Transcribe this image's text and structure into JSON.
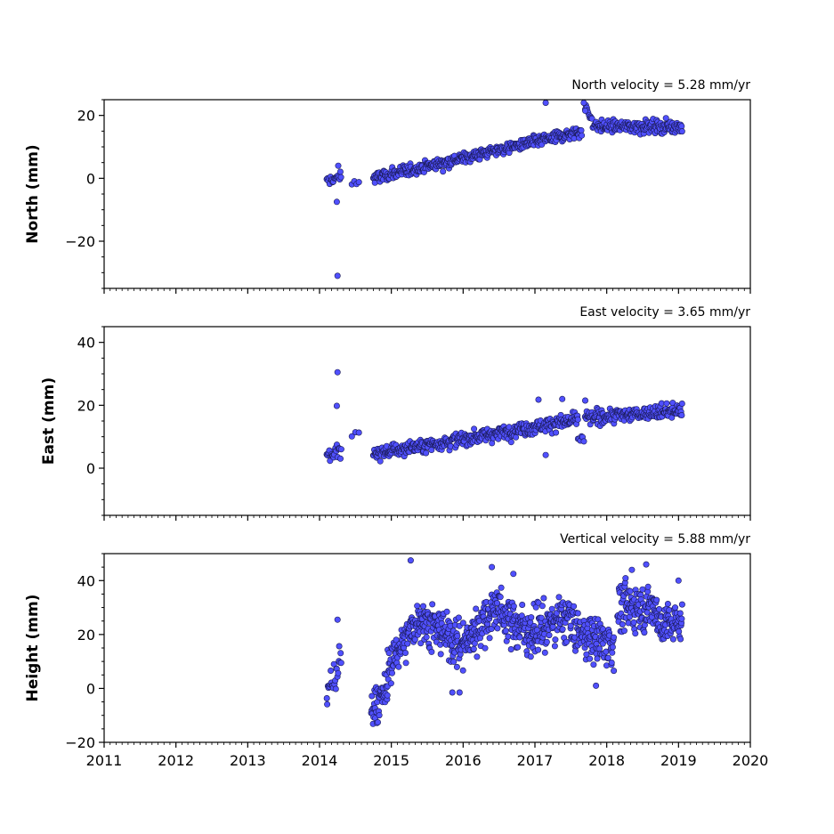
{
  "chart_data": [
    {
      "type": "scatter",
      "title": "North velocity = 5.28 mm/yr",
      "ylabel": "North (mm)",
      "xlim": [
        2011,
        2020
      ],
      "ylim": [
        -35,
        25
      ],
      "yticks": [
        -20,
        0,
        20
      ],
      "ytick_labels": [
        "−20",
        "0",
        "20"
      ],
      "color": "#5050ff",
      "velocity_mm_per_yr": 5.28,
      "segments": [
        {
          "t0": 2014.1,
          "t1": 2014.3,
          "y0": -1.0,
          "y1": 0.5,
          "noise": 1.5,
          "n": 20
        },
        {
          "t0": 2014.45,
          "t1": 2014.55,
          "y0": -1.5,
          "y1": -1.0,
          "noise": 1.0,
          "n": 4
        },
        {
          "t0": 2014.75,
          "t1": 2017.65,
          "y0": 0.0,
          "y1": 15.0,
          "noise": 1.3,
          "n": 420
        },
        {
          "t0": 2017.7,
          "t1": 2017.85,
          "y0": 22.0,
          "y1": 17.0,
          "noise": 1.5,
          "n": 15
        },
        {
          "t0": 2017.85,
          "t1": 2019.05,
          "y0": 16.5,
          "y1": 16.5,
          "noise": 1.4,
          "n": 170
        }
      ],
      "outliers": [
        {
          "x": 2014.25,
          "y": -31.0
        },
        {
          "x": 2014.24,
          "y": -7.5
        },
        {
          "x": 2014.26,
          "y": 4.0
        },
        {
          "x": 2017.15,
          "y": 24.0
        },
        {
          "x": 2017.68,
          "y": 24.0
        },
        {
          "x": 2017.7,
          "y": 21.5
        }
      ]
    },
    {
      "type": "scatter",
      "title": "East velocity = 3.65 mm/yr",
      "ylabel": "East (mm)",
      "xlim": [
        2011,
        2020
      ],
      "ylim": [
        -15,
        45
      ],
      "yticks": [
        0,
        20,
        40
      ],
      "ytick_labels": [
        "0",
        "20",
        "40"
      ],
      "color": "#5050ff",
      "velocity_mm_per_yr": 3.65,
      "segments": [
        {
          "t0": 2014.1,
          "t1": 2014.3,
          "y0": 4.0,
          "y1": 5.5,
          "noise": 1.8,
          "n": 22
        },
        {
          "t0": 2014.45,
          "t1": 2014.55,
          "y0": 9.5,
          "y1": 10.5,
          "noise": 1.0,
          "n": 3
        },
        {
          "t0": 2014.75,
          "t1": 2017.6,
          "y0": 4.5,
          "y1": 15.5,
          "noise": 1.6,
          "n": 420
        },
        {
          "t0": 2017.6,
          "t1": 2017.68,
          "y0": 10.0,
          "y1": 9.0,
          "noise": 1.0,
          "n": 6
        },
        {
          "t0": 2017.7,
          "t1": 2019.05,
          "y0": 16.0,
          "y1": 18.5,
          "noise": 1.6,
          "n": 190
        }
      ],
      "outliers": [
        {
          "x": 2014.25,
          "y": 30.5
        },
        {
          "x": 2014.24,
          "y": 19.8
        },
        {
          "x": 2017.15,
          "y": 4.2
        },
        {
          "x": 2017.05,
          "y": 21.8
        },
        {
          "x": 2017.38,
          "y": 22.0
        },
        {
          "x": 2017.7,
          "y": 21.5
        }
      ]
    },
    {
      "type": "scatter",
      "title": "Vertical velocity = 5.88 mm/yr",
      "ylabel": "Height (mm)",
      "xlim": [
        2011,
        2020
      ],
      "ylim": [
        -20,
        50
      ],
      "yticks": [
        -20,
        0,
        20,
        40
      ],
      "ytick_labels": [
        "−20",
        "0",
        "20",
        "40"
      ],
      "xticks": [
        2011,
        2012,
        2013,
        2014,
        2015,
        2016,
        2017,
        2018,
        2019,
        2020
      ],
      "xtick_labels": [
        "2011",
        "2012",
        "2013",
        "2014",
        "2015",
        "2016",
        "2017",
        "2018",
        "2019",
        "2020"
      ],
      "color": "#5050ff",
      "velocity_mm_per_yr": 5.88,
      "segments": [
        {
          "t0": 2014.1,
          "t1": 2014.3,
          "y0": -5.0,
          "y1": 12.0,
          "noise": 5.0,
          "n": 25
        },
        {
          "t0": 2014.72,
          "t1": 2014.95,
          "y0": -8.0,
          "y1": 0.0,
          "noise": 5.0,
          "n": 45
        },
        {
          "t0": 2014.95,
          "t1": 2015.4,
          "y0": 8.0,
          "y1": 27.0,
          "noise": 5.0,
          "n": 90
        },
        {
          "t0": 2015.4,
          "t1": 2016.0,
          "y0": 26.0,
          "y1": 16.0,
          "noise": 6.0,
          "n": 120
        },
        {
          "t0": 2016.0,
          "t1": 2016.5,
          "y0": 16.0,
          "y1": 32.0,
          "noise": 6.0,
          "n": 100
        },
        {
          "t0": 2016.5,
          "t1": 2017.0,
          "y0": 28.0,
          "y1": 20.0,
          "noise": 6.0,
          "n": 100
        },
        {
          "t0": 2017.0,
          "t1": 2017.5,
          "y0": 22.0,
          "y1": 27.0,
          "noise": 6.0,
          "n": 100
        },
        {
          "t0": 2017.5,
          "t1": 2018.1,
          "y0": 22.0,
          "y1": 16.0,
          "noise": 6.0,
          "n": 120
        },
        {
          "t0": 2018.15,
          "t1": 2018.7,
          "y0": 30.0,
          "y1": 30.0,
          "noise": 6.0,
          "n": 110
        },
        {
          "t0": 2018.7,
          "t1": 2019.05,
          "y0": 24.0,
          "y1": 24.0,
          "noise": 5.0,
          "n": 70
        }
      ],
      "outliers": [
        {
          "x": 2014.25,
          "y": 25.5
        },
        {
          "x": 2015.27,
          "y": 47.5
        },
        {
          "x": 2015.85,
          "y": -1.5
        },
        {
          "x": 2015.95,
          "y": -1.5
        },
        {
          "x": 2016.4,
          "y": 45.0
        },
        {
          "x": 2016.7,
          "y": 42.5
        },
        {
          "x": 2017.85,
          "y": 1.0
        },
        {
          "x": 2018.55,
          "y": 46.0
        },
        {
          "x": 2018.35,
          "y": 44.0
        },
        {
          "x": 2019.0,
          "y": 40.0
        }
      ]
    }
  ]
}
